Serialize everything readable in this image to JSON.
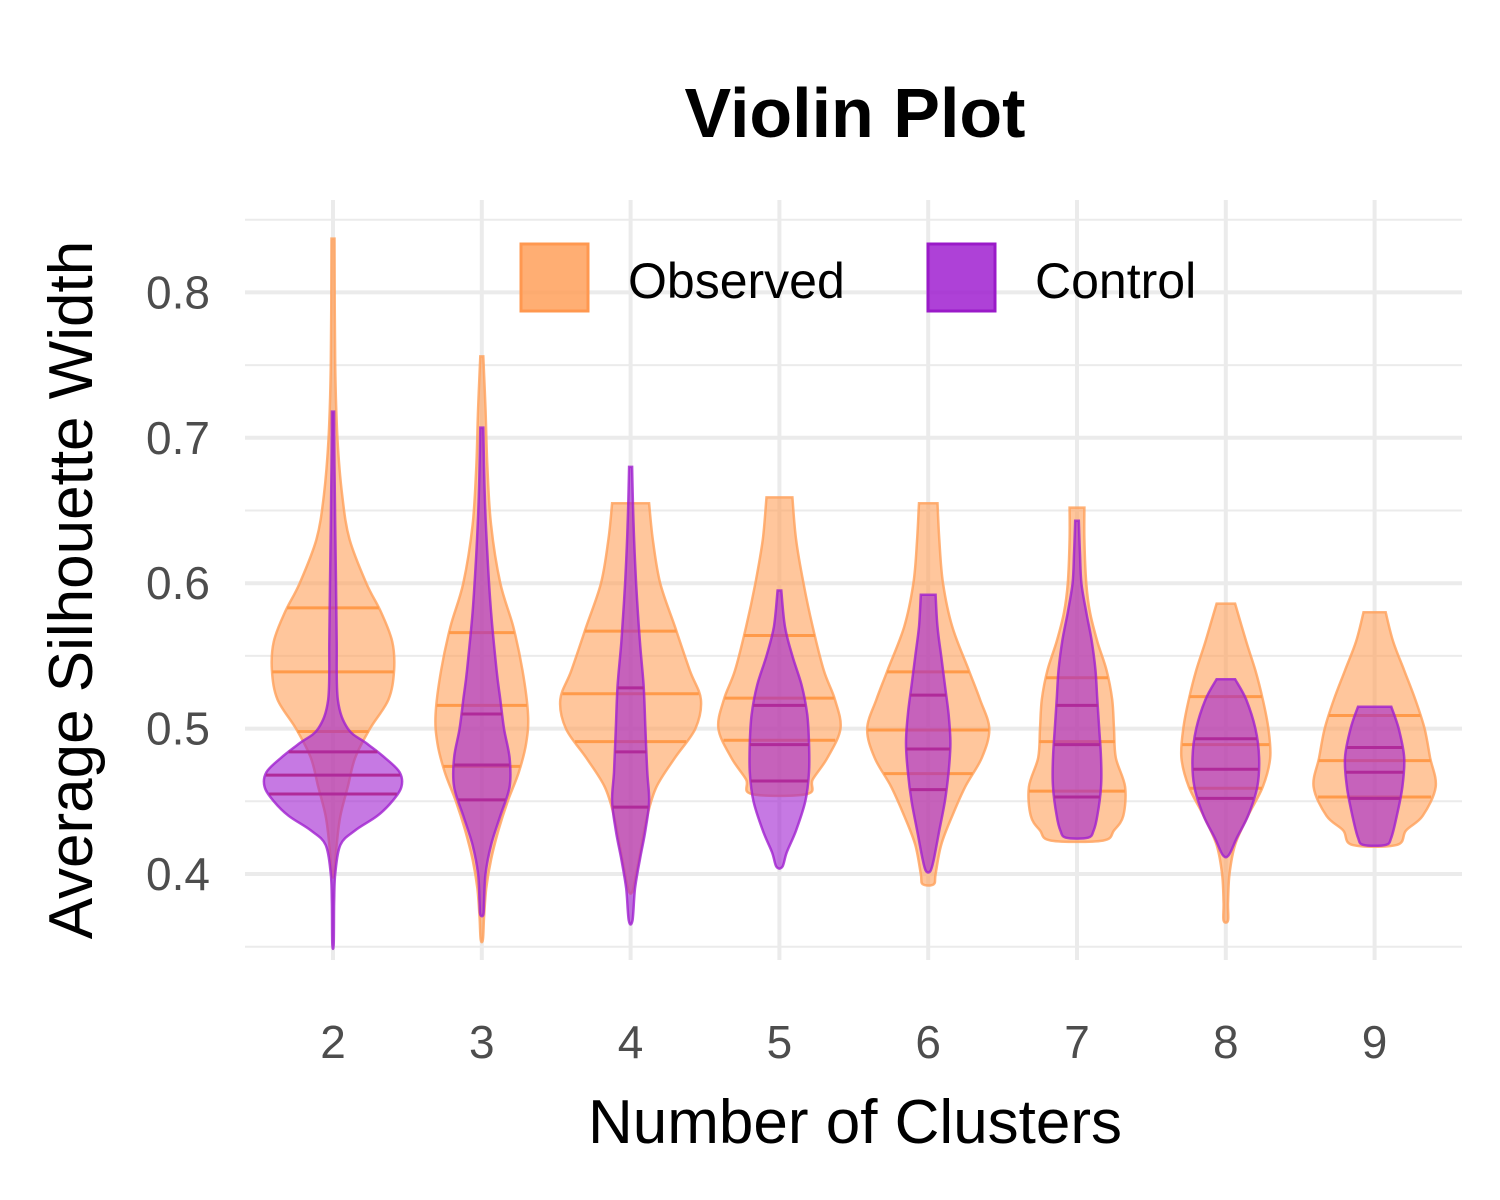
{
  "chart_data": {
    "type": "violin",
    "title": "Violin Plot",
    "xlabel": "Number of Clusters",
    "ylabel": "Average Silhouette Width",
    "categories": [
      "2",
      "3",
      "4",
      "5",
      "6",
      "7",
      "8",
      "9"
    ],
    "ylim": [
      0.34,
      0.86
    ],
    "yticks": [
      {
        "value": 0.4,
        "label": "0.4"
      },
      {
        "value": 0.5,
        "label": "0.5"
      },
      {
        "value": 0.6,
        "label": "0.6"
      },
      {
        "value": 0.7,
        "label": "0.7"
      },
      {
        "value": 0.8,
        "label": "0.8"
      }
    ],
    "grid": true,
    "legend": {
      "position": "top",
      "entries": [
        "Observed",
        "Control"
      ]
    },
    "colors": {
      "Observed": "#ffa05a",
      "Control": "#a020d0"
    },
    "series": [
      {
        "name": "Observed",
        "quantiles": [
          [
            0.498,
            0.539,
            0.583
          ],
          [
            0.474,
            0.516,
            0.566
          ],
          [
            0.491,
            0.524,
            0.567
          ],
          [
            0.492,
            0.521,
            0.564
          ],
          [
            0.469,
            0.499,
            0.539
          ],
          [
            0.457,
            0.491,
            0.535
          ],
          [
            0.459,
            0.489,
            0.522
          ],
          [
            0.453,
            0.478,
            0.509
          ]
        ],
        "violins": [
          [
            [
              0.837,
              0.004
            ],
            [
              0.75,
              0.006
            ],
            [
              0.7,
              0.012
            ],
            [
              0.66,
              0.025
            ],
            [
              0.63,
              0.045
            ],
            [
              0.6,
              0.09
            ],
            [
              0.58,
              0.13
            ],
            [
              0.56,
              0.16
            ],
            [
              0.54,
              0.165
            ],
            [
              0.52,
              0.15
            ],
            [
              0.5,
              0.1
            ],
            [
              0.48,
              0.06
            ],
            [
              0.46,
              0.04
            ],
            [
              0.44,
              0.02
            ],
            [
              0.42,
              0.01
            ],
            [
              0.4,
              0.003
            ]
          ],
          [
            [
              0.756,
              0.004
            ],
            [
              0.72,
              0.01
            ],
            [
              0.68,
              0.015
            ],
            [
              0.64,
              0.025
            ],
            [
              0.6,
              0.05
            ],
            [
              0.57,
              0.085
            ],
            [
              0.54,
              0.11
            ],
            [
              0.51,
              0.125
            ],
            [
              0.49,
              0.12
            ],
            [
              0.47,
              0.1
            ],
            [
              0.45,
              0.07
            ],
            [
              0.43,
              0.045
            ],
            [
              0.41,
              0.025
            ],
            [
              0.39,
              0.012
            ],
            [
              0.37,
              0.006
            ],
            [
              0.355,
              0.003
            ]
          ],
          [
            [
              0.655,
              0.05
            ],
            [
              0.63,
              0.06
            ],
            [
              0.6,
              0.08
            ],
            [
              0.57,
              0.12
            ],
            [
              0.54,
              0.16
            ],
            [
              0.52,
              0.19
            ],
            [
              0.5,
              0.175
            ],
            [
              0.48,
              0.12
            ],
            [
              0.46,
              0.07
            ],
            [
              0.44,
              0.045
            ],
            [
              0.42,
              0.03
            ],
            [
              0.4,
              0.015
            ],
            [
              0.388,
              0.005
            ]
          ],
          [
            [
              0.659,
              0.035
            ],
            [
              0.63,
              0.045
            ],
            [
              0.6,
              0.065
            ],
            [
              0.57,
              0.09
            ],
            [
              0.54,
              0.12
            ],
            [
              0.52,
              0.15
            ],
            [
              0.5,
              0.165
            ],
            [
              0.48,
              0.13
            ],
            [
              0.465,
              0.09
            ],
            [
              0.455,
              0.075
            ]
          ],
          [
            [
              0.655,
              0.025
            ],
            [
              0.63,
              0.03
            ],
            [
              0.6,
              0.04
            ],
            [
              0.57,
              0.065
            ],
            [
              0.54,
              0.11
            ],
            [
              0.52,
              0.14
            ],
            [
              0.5,
              0.165
            ],
            [
              0.48,
              0.145
            ],
            [
              0.46,
              0.1
            ],
            [
              0.44,
              0.065
            ],
            [
              0.42,
              0.035
            ],
            [
              0.4,
              0.02
            ],
            [
              0.393,
              0.015
            ]
          ],
          [
            [
              0.652,
              0.02
            ],
            [
              0.63,
              0.02
            ],
            [
              0.6,
              0.025
            ],
            [
              0.58,
              0.035
            ],
            [
              0.56,
              0.055
            ],
            [
              0.54,
              0.08
            ],
            [
              0.52,
              0.095
            ],
            [
              0.5,
              0.1
            ],
            [
              0.48,
              0.105
            ],
            [
              0.46,
              0.13
            ],
            [
              0.44,
              0.125
            ],
            [
              0.43,
              0.1
            ],
            [
              0.423,
              0.07
            ]
          ],
          [
            [
              0.586,
              0.025
            ],
            [
              0.56,
              0.055
            ],
            [
              0.54,
              0.08
            ],
            [
              0.52,
              0.1
            ],
            [
              0.5,
              0.115
            ],
            [
              0.48,
              0.12
            ],
            [
              0.46,
              0.1
            ],
            [
              0.44,
              0.06
            ],
            [
              0.42,
              0.025
            ],
            [
              0.4,
              0.01
            ],
            [
              0.38,
              0.006
            ],
            [
              0.368,
              0.006
            ]
          ],
          [
            [
              0.58,
              0.03
            ],
            [
              0.56,
              0.05
            ],
            [
              0.54,
              0.08
            ],
            [
              0.52,
              0.11
            ],
            [
              0.5,
              0.135
            ],
            [
              0.48,
              0.15
            ],
            [
              0.46,
              0.165
            ],
            [
              0.44,
              0.13
            ],
            [
              0.43,
              0.085
            ],
            [
              0.42,
              0.06
            ]
          ]
        ]
      },
      {
        "name": "Control",
        "quantiles": [
          [
            0.455,
            0.468,
            0.484
          ],
          [
            0.451,
            0.475,
            0.51
          ],
          [
            0.446,
            0.484,
            0.528
          ],
          [
            0.464,
            0.489,
            0.516
          ],
          [
            0.458,
            0.486,
            0.523
          ],
          [
            0.453,
            0.489,
            0.516
          ],
          [
            0.452,
            0.472,
            0.493
          ],
          [
            0.452,
            0.47,
            0.487
          ]
        ],
        "violins": [
          [
            [
              0.718,
              0.003
            ],
            [
              0.68,
              0.004
            ],
            [
              0.64,
              0.006
            ],
            [
              0.6,
              0.008
            ],
            [
              0.56,
              0.01
            ],
            [
              0.52,
              0.013
            ],
            [
              0.5,
              0.04
            ],
            [
              0.49,
              0.09
            ],
            [
              0.48,
              0.14
            ],
            [
              0.47,
              0.18
            ],
            [
              0.46,
              0.185
            ],
            [
              0.45,
              0.16
            ],
            [
              0.44,
              0.12
            ],
            [
              0.43,
              0.06
            ],
            [
              0.42,
              0.02
            ],
            [
              0.4,
              0.006
            ],
            [
              0.38,
              0.003
            ],
            [
              0.352,
              0.002
            ]
          ],
          [
            [
              0.707,
              0.004
            ],
            [
              0.66,
              0.008
            ],
            [
              0.62,
              0.015
            ],
            [
              0.58,
              0.025
            ],
            [
              0.54,
              0.04
            ],
            [
              0.52,
              0.05
            ],
            [
              0.5,
              0.06
            ],
            [
              0.48,
              0.075
            ],
            [
              0.46,
              0.075
            ],
            [
              0.44,
              0.05
            ],
            [
              0.42,
              0.025
            ],
            [
              0.4,
              0.01
            ],
            [
              0.38,
              0.006
            ],
            [
              0.372,
              0.004
            ]
          ],
          [
            [
              0.68,
              0.004
            ],
            [
              0.64,
              0.008
            ],
            [
              0.6,
              0.015
            ],
            [
              0.56,
              0.025
            ],
            [
              0.53,
              0.035
            ],
            [
              0.5,
              0.04
            ],
            [
              0.47,
              0.045
            ],
            [
              0.45,
              0.05
            ],
            [
              0.43,
              0.04
            ],
            [
              0.41,
              0.025
            ],
            [
              0.39,
              0.012
            ],
            [
              0.368,
              0.005
            ]
          ],
          [
            [
              0.595,
              0.005
            ],
            [
              0.57,
              0.015
            ],
            [
              0.55,
              0.035
            ],
            [
              0.53,
              0.06
            ],
            [
              0.51,
              0.075
            ],
            [
              0.49,
              0.08
            ],
            [
              0.47,
              0.08
            ],
            [
              0.45,
              0.07
            ],
            [
              0.43,
              0.045
            ],
            [
              0.415,
              0.02
            ],
            [
              0.405,
              0.008
            ]
          ],
          [
            [
              0.592,
              0.02
            ],
            [
              0.57,
              0.025
            ],
            [
              0.55,
              0.035
            ],
            [
              0.53,
              0.045
            ],
            [
              0.51,
              0.055
            ],
            [
              0.49,
              0.06
            ],
            [
              0.47,
              0.055
            ],
            [
              0.45,
              0.045
            ],
            [
              0.43,
              0.03
            ],
            [
              0.41,
              0.015
            ],
            [
              0.402,
              0.006
            ]
          ],
          [
            [
              0.643,
              0.005
            ],
            [
              0.62,
              0.008
            ],
            [
              0.6,
              0.012
            ],
            [
              0.58,
              0.025
            ],
            [
              0.56,
              0.04
            ],
            [
              0.54,
              0.05
            ],
            [
              0.52,
              0.055
            ],
            [
              0.5,
              0.06
            ],
            [
              0.48,
              0.065
            ],
            [
              0.46,
              0.065
            ],
            [
              0.44,
              0.055
            ],
            [
              0.43,
              0.045
            ],
            [
              0.425,
              0.03
            ]
          ],
          [
            [
              0.534,
              0.025
            ],
            [
              0.52,
              0.055
            ],
            [
              0.5,
              0.08
            ],
            [
              0.48,
              0.09
            ],
            [
              0.46,
              0.085
            ],
            [
              0.44,
              0.06
            ],
            [
              0.425,
              0.03
            ],
            [
              0.413,
              0.008
            ]
          ],
          [
            [
              0.515,
              0.045
            ],
            [
              0.5,
              0.065
            ],
            [
              0.48,
              0.08
            ],
            [
              0.46,
              0.075
            ],
            [
              0.44,
              0.06
            ],
            [
              0.425,
              0.045
            ],
            [
              0.42,
              0.03
            ]
          ]
        ]
      }
    ]
  }
}
